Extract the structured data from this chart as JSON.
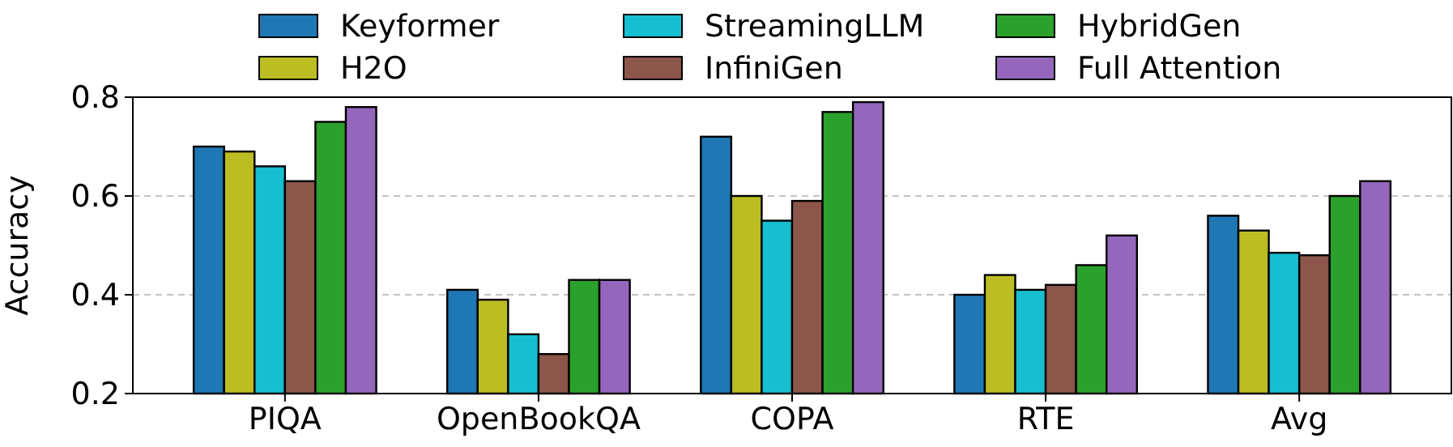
{
  "chart_data": {
    "type": "bar",
    "ylabel": "Accuracy",
    "categories": [
      "PIQA",
      "OpenBookQA",
      "COPA",
      "RTE",
      "Avg"
    ],
    "series": [
      {
        "name": "Keyformer",
        "color": "#1f77b4",
        "values": [
          0.7,
          0.41,
          0.72,
          0.4,
          0.56
        ]
      },
      {
        "name": "H2O",
        "color": "#bcbd22",
        "values": [
          0.69,
          0.39,
          0.6,
          0.44,
          0.53
        ]
      },
      {
        "name": "StreamingLLM",
        "color": "#17becf",
        "values": [
          0.66,
          0.32,
          0.55,
          0.41,
          0.485
        ]
      },
      {
        "name": "InfiniGen",
        "color": "#8c564b",
        "values": [
          0.63,
          0.28,
          0.59,
          0.42,
          0.48
        ]
      },
      {
        "name": "HybridGen",
        "color": "#2ca02c",
        "values": [
          0.75,
          0.43,
          0.77,
          0.46,
          0.6
        ]
      },
      {
        "name": "Full Attention",
        "color": "#9467bd",
        "values": [
          0.78,
          0.43,
          0.79,
          0.52,
          0.63
        ]
      }
    ],
    "ylim": [
      0.2,
      0.8
    ],
    "yticks": [
      0.2,
      0.4,
      0.6,
      0.8
    ],
    "grid": "y",
    "legend": "top"
  }
}
